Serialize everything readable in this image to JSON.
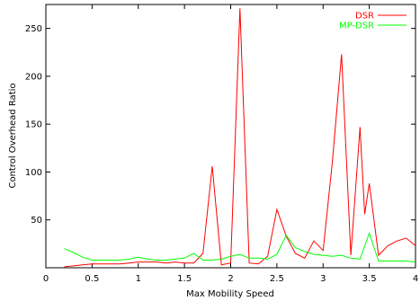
{
  "chart_data": {
    "type": "line",
    "title": "",
    "xlabel": "Max Mobility Speed",
    "ylabel": "Control Overhead Ratio",
    "xlim": [
      0,
      4
    ],
    "ylim": [
      0,
      275
    ],
    "xticks": [
      0,
      0.5,
      1,
      1.5,
      2,
      2.5,
      3,
      3.5,
      4
    ],
    "xtick_labels": [
      "0",
      "0.5",
      "1",
      "1.5",
      "2",
      "2.5",
      "3",
      "3.5",
      "4"
    ],
    "yticks": [
      50,
      100,
      150,
      200,
      250
    ],
    "ytick_labels": [
      "50",
      "100",
      "150",
      "200",
      "250"
    ],
    "grid": false,
    "legend_position": "top-right",
    "series": [
      {
        "name": "DSR",
        "color": "#ff0000",
        "x": [
          0.2,
          0.3,
          0.4,
          0.5,
          0.6,
          0.7,
          0.8,
          0.9,
          1.0,
          1.1,
          1.2,
          1.3,
          1.4,
          1.5,
          1.6,
          1.7,
          1.8,
          1.9,
          2.0,
          2.1,
          2.2,
          2.3,
          2.4,
          2.5,
          2.6,
          2.7,
          2.8,
          2.9,
          3.0,
          3.1,
          3.2,
          3.3,
          3.4,
          3.45,
          3.5,
          3.6,
          3.7,
          3.8,
          3.9,
          4.0
        ],
        "y": [
          1,
          2,
          3,
          4,
          4,
          4,
          4,
          5,
          6,
          6,
          6,
          5,
          6,
          5,
          5,
          15,
          106,
          3,
          5,
          271,
          5,
          4,
          12,
          61,
          33,
          15,
          10,
          28,
          18,
          110,
          223,
          13,
          147,
          56,
          88,
          13,
          23,
          28,
          31,
          23
        ]
      },
      {
        "name": "MP-DSR",
        "color": "#00ff00",
        "x": [
          0.2,
          0.3,
          0.4,
          0.5,
          0.6,
          0.7,
          0.8,
          0.9,
          1.0,
          1.1,
          1.2,
          1.3,
          1.4,
          1.5,
          1.6,
          1.7,
          1.8,
          1.9,
          2.0,
          2.1,
          2.2,
          2.3,
          2.4,
          2.5,
          2.6,
          2.7,
          2.8,
          2.9,
          3.0,
          3.1,
          3.2,
          3.3,
          3.4,
          3.5,
          3.6,
          3.7,
          3.8,
          3.9,
          4.0
        ],
        "y": [
          20,
          16,
          11,
          8,
          8,
          8,
          8,
          9,
          11,
          9,
          8,
          8,
          9,
          10,
          15,
          8,
          8,
          9,
          12,
          14,
          10,
          10,
          9,
          14,
          34,
          21,
          17,
          14,
          13,
          12,
          13,
          10,
          9,
          36,
          7,
          7,
          7,
          7,
          6
        ]
      }
    ]
  }
}
